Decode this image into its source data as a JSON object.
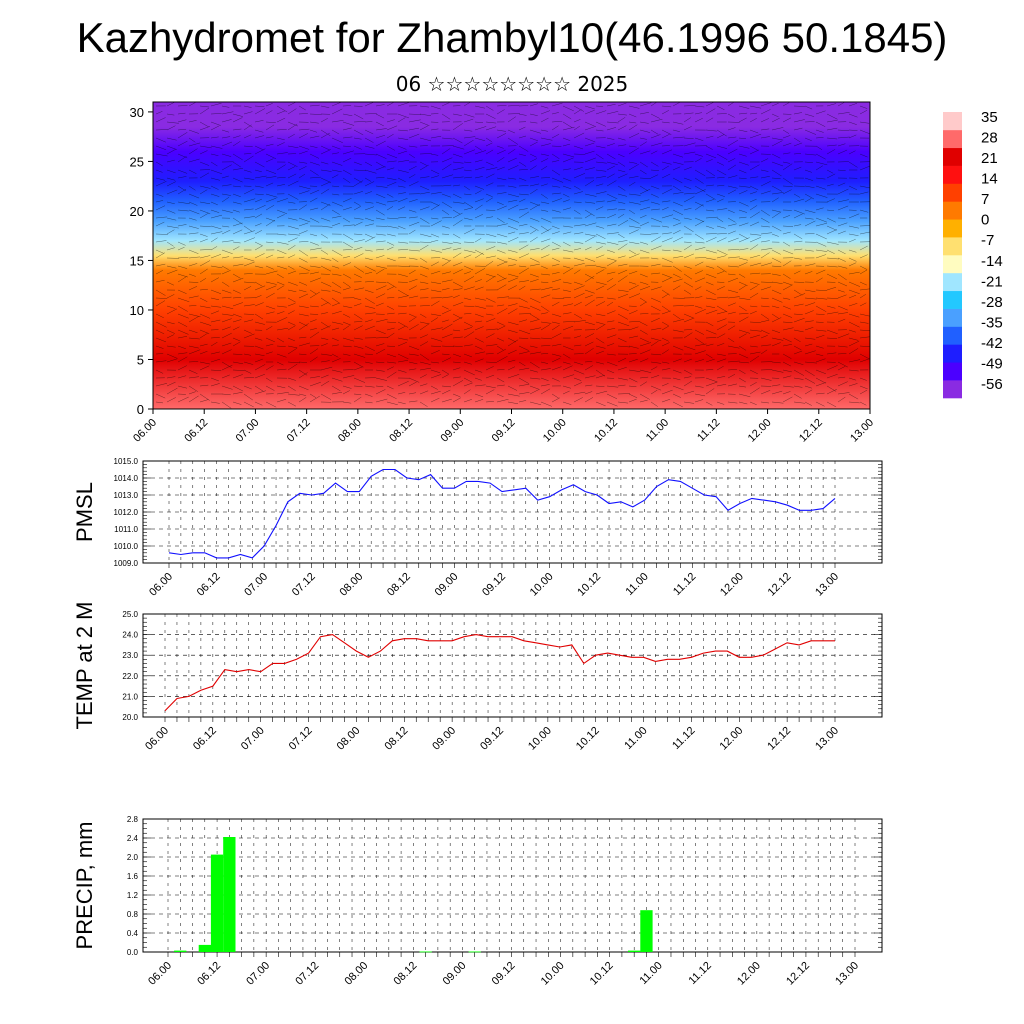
{
  "title": "Kazhydromet for Zhambyl10(46.1996 50.1845)",
  "subtitle": "06 ☆☆☆☆☆☆☆☆ 2025",
  "colors": {
    "pmsl_line": "#1010ff",
    "temp_line": "#e00000",
    "precip_bar": "#00ff00",
    "grid": "#000000"
  },
  "chart_data": [
    {
      "id": "cross_section",
      "type": "heatmap",
      "title": "",
      "xlabel": "",
      "ylabel": "",
      "x_ticks": [
        "06.00",
        "06.12",
        "07.00",
        "07.12",
        "08.00",
        "08.12",
        "09.00",
        "09.12",
        "10.00",
        "10.12",
        "11.00",
        "11.12",
        "12.00",
        "12.12",
        "13.00"
      ],
      "y_ticks": [
        "0",
        "5",
        "10",
        "15",
        "20",
        "25",
        "30"
      ],
      "ylim": [
        0,
        31
      ],
      "colorbar_labels": [
        "35",
        "28",
        "21",
        "14",
        "7",
        "0",
        "-7",
        "-14",
        "-21",
        "-28",
        "-35",
        "-42",
        "-49",
        "-56"
      ],
      "colorbar_range": [
        -63,
        42
      ],
      "colorbar_colors": [
        "#8a2be2",
        "#4b00ff",
        "#1e1eff",
        "#2060ff",
        "#4aa0ff",
        "#23c8ff",
        "#a0e6ff",
        "#fffcc0",
        "#ffe070",
        "#ffb000",
        "#ff7a00",
        "#ff4000",
        "#ff1010",
        "#e00000",
        "#ff6a6a",
        "#ffcaca"
      ],
      "level_values": [
        {
          "level": 0,
          "value": 32
        },
        {
          "level": 5,
          "value": 27
        },
        {
          "level": 10,
          "value": 15
        },
        {
          "level": 14,
          "value": 3
        },
        {
          "level": 15.5,
          "value": -5
        },
        {
          "level": 17,
          "value": -18
        },
        {
          "level": 19,
          "value": -33
        },
        {
          "level": 21,
          "value": -42
        },
        {
          "level": 23,
          "value": -49
        },
        {
          "level": 26,
          "value": -53
        },
        {
          "level": 28.5,
          "value": -57
        },
        {
          "level": 31,
          "value": -60
        }
      ]
    },
    {
      "id": "pmsl",
      "type": "line",
      "ylabel": "PMSL",
      "ylim": [
        1009.0,
        1015.0
      ],
      "y_ticks": [
        "1009.0",
        "1010.0",
        "1011.0",
        "1012.0",
        "1013.0",
        "1014.0",
        "1015.0"
      ],
      "x_ticks": [
        "06.00",
        "06.12",
        "07.00",
        "07.12",
        "08.00",
        "08.12",
        "09.00",
        "09.12",
        "10.00",
        "10.12",
        "11.00",
        "11.12",
        "12.00",
        "12.12",
        "13.00"
      ],
      "x_hours": [
        0,
        3,
        6,
        9,
        12,
        15,
        18,
        21,
        24,
        27,
        30,
        33,
        36,
        39,
        42,
        45,
        48,
        51,
        54,
        57,
        60,
        63,
        66,
        69,
        72,
        75,
        78,
        81,
        84,
        87,
        90,
        93,
        96,
        99,
        102,
        105,
        108,
        111,
        114,
        117,
        120,
        123,
        126,
        129,
        132,
        135,
        138,
        141,
        144,
        147,
        150,
        153,
        156,
        159,
        162,
        165,
        168
      ],
      "values": [
        1009.6,
        1009.5,
        1009.6,
        1009.6,
        1009.3,
        1009.3,
        1009.5,
        1009.3,
        1010.0,
        1011.2,
        1012.6,
        1013.1,
        1013.0,
        1013.1,
        1013.7,
        1013.2,
        1013.2,
        1014.1,
        1014.5,
        1014.5,
        1014.0,
        1013.9,
        1014.2,
        1013.4,
        1013.4,
        1013.8,
        1013.8,
        1013.7,
        1013.2,
        1013.3,
        1013.4,
        1012.7,
        1012.9,
        1013.3,
        1013.6,
        1013.2,
        1013.0,
        1012.5,
        1012.6,
        1012.3,
        1012.7,
        1013.5,
        1013.9,
        1013.8,
        1013.4,
        1013.0,
        1012.9,
        1012.1,
        1012.5,
        1012.8,
        1012.7,
        1012.6,
        1012.4,
        1012.1,
        1012.1,
        1012.2,
        1012.8
      ]
    },
    {
      "id": "temp2m",
      "type": "line",
      "ylabel": "TEMP at 2 M",
      "ylim": [
        20.0,
        25.0
      ],
      "y_ticks": [
        "20.0",
        "21.0",
        "22.0",
        "23.0",
        "24.0",
        "25.0"
      ],
      "x_ticks": [
        "06.00",
        "06.12",
        "07.00",
        "07.12",
        "08.00",
        "08.12",
        "09.00",
        "09.12",
        "10.00",
        "10.12",
        "11.00",
        "11.12",
        "12.00",
        "12.12",
        "13.00"
      ],
      "x_hours": [
        0,
        3,
        6,
        9,
        12,
        15,
        18,
        21,
        24,
        27,
        30,
        33,
        36,
        39,
        42,
        45,
        48,
        51,
        54,
        57,
        60,
        63,
        66,
        69,
        72,
        75,
        78,
        81,
        84,
        87,
        90,
        93,
        96,
        99,
        102,
        105,
        108,
        111,
        114,
        117,
        120,
        123,
        126,
        129,
        132,
        135,
        138,
        141,
        144,
        147,
        150,
        153,
        156,
        159,
        162,
        165,
        168
      ],
      "values": [
        20.3,
        20.9,
        21.0,
        21.3,
        21.5,
        22.3,
        22.2,
        22.3,
        22.2,
        22.6,
        22.6,
        22.8,
        23.1,
        23.9,
        24.0,
        23.6,
        23.2,
        22.9,
        23.2,
        23.7,
        23.8,
        23.8,
        23.7,
        23.7,
        23.7,
        23.9,
        24.0,
        23.9,
        23.9,
        23.9,
        23.7,
        23.6,
        23.5,
        23.4,
        23.5,
        22.6,
        23.0,
        23.1,
        23.0,
        22.9,
        22.9,
        22.7,
        22.8,
        22.8,
        22.9,
        23.1,
        23.2,
        23.2,
        22.9,
        22.9,
        23.0,
        23.3,
        23.6,
        23.5,
        23.7,
        23.7,
        23.7
      ]
    },
    {
      "id": "precip",
      "type": "bar",
      "ylabel": "PRECIP, mm",
      "ylim": [
        0.0,
        2.8
      ],
      "y_ticks": [
        "0.0",
        "0.4",
        "0.8",
        "1.2",
        "1.6",
        "2.0",
        "2.4",
        "2.8"
      ],
      "x_ticks": [
        "06.00",
        "06.12",
        "07.00",
        "07.12",
        "08.00",
        "08.12",
        "09.00",
        "09.12",
        "10.00",
        "10.12",
        "11.00",
        "11.12",
        "12.00",
        "12.12",
        "13.00"
      ],
      "bar_hours": [
        3,
        9,
        12,
        15,
        63,
        75,
        114,
        117
      ],
      "values": [
        0.03,
        0.15,
        2.05,
        2.42,
        0.01,
        0.01,
        0.03,
        0.88
      ]
    }
  ]
}
